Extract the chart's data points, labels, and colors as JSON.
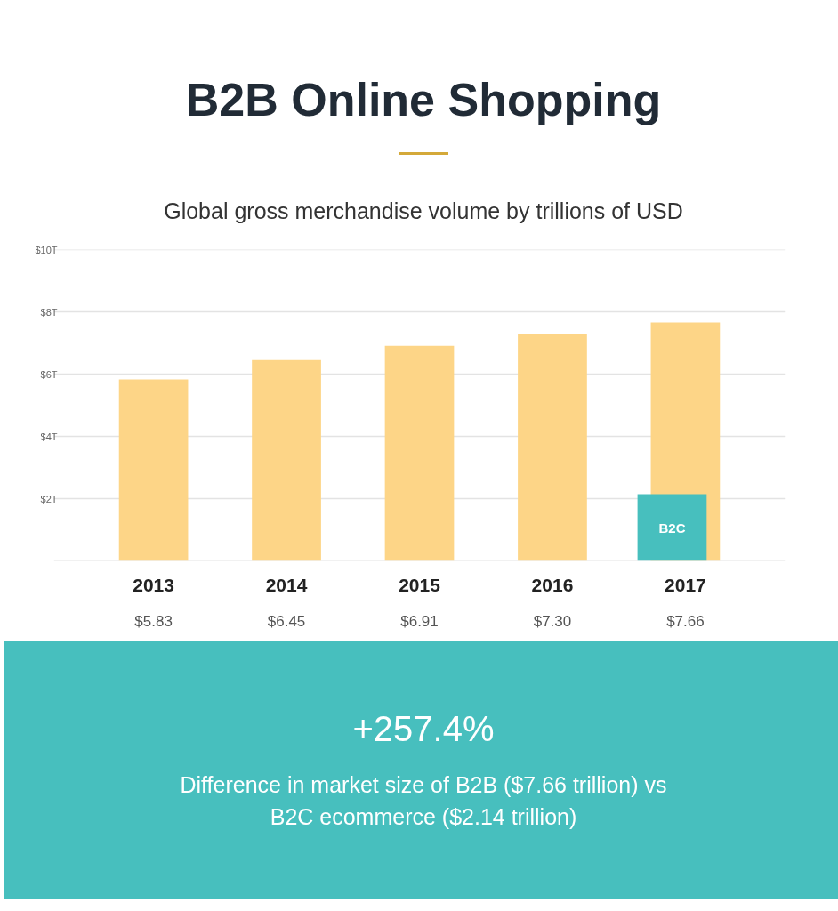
{
  "chart_data": {
    "type": "bar",
    "title": "B2B Online Shopping",
    "subtitle": "Global gross merchandise volume by trillions of USD",
    "categories": [
      "2013",
      "2014",
      "2015",
      "2016",
      "2017"
    ],
    "series": [
      {
        "color": "#fdd587",
        "values": [
          5.83,
          6.45,
          6.91,
          7.3,
          7.66
        ],
        "value_labels": [
          "$5.83",
          "$6.45",
          "$6.91",
          "$7.30",
          "$7.66"
        ]
      },
      {
        "name": "B2C",
        "color": "#47bfbe",
        "values": [
          null,
          null,
          null,
          null,
          2.14
        ]
      }
    ],
    "ylim": [
      0,
      10
    ],
    "yticks": [
      {
        "value": 0,
        "label": null
      },
      {
        "value": 2,
        "label": "$2T"
      },
      {
        "value": 4,
        "label": "$4T"
      },
      {
        "value": 6,
        "label": "$6T"
      },
      {
        "value": 8,
        "label": "$8T"
      },
      {
        "value": 10,
        "label": "$10T"
      }
    ],
    "grid": "y",
    "annotations": [
      "+257.4%",
      "Difference in market size of B2B ($7.66 trillion) vs B2C ecommerce ($2.14 trillion)"
    ]
  }
}
